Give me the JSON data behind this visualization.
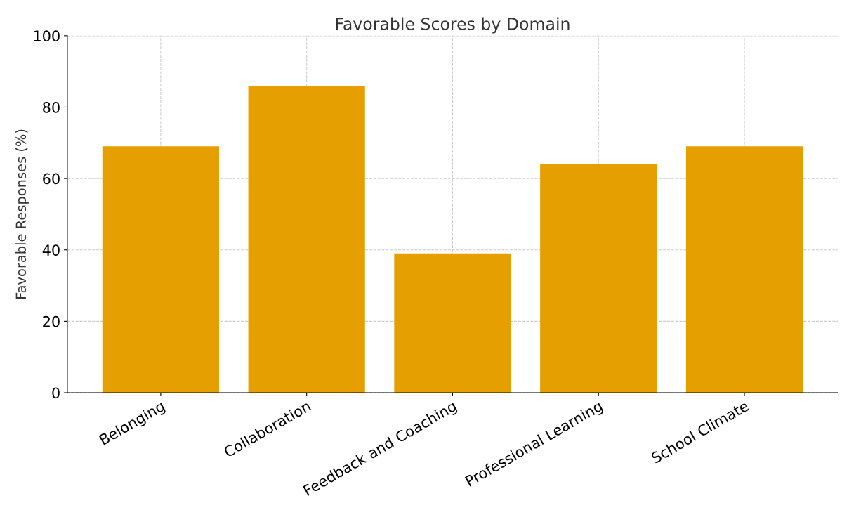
{
  "chart_data": {
    "type": "bar",
    "title": "Favorable Scores by Domain",
    "ylabel": "Favorable Responses (%)",
    "categories": [
      "Belonging",
      "Collaboration",
      "Feedback and Coaching",
      "Professional Learning",
      "School Climate"
    ],
    "values": [
      69,
      86,
      39,
      64,
      69
    ],
    "color": "#e69f00",
    "ylim": [
      0,
      100
    ],
    "yticks": [
      0,
      20,
      40,
      60,
      80,
      100
    ],
    "grid": true
  }
}
